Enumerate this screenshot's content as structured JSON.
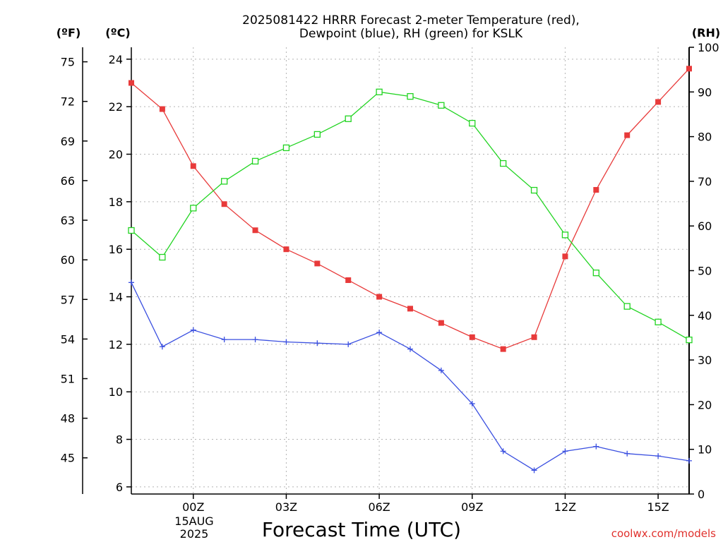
{
  "chart_data": {
    "type": "line",
    "title": [
      "2025081422 HRRR Forecast 2-meter Temperature (red),",
      "Dewpoint (blue), RH (green) for KSLK"
    ],
    "xlabel": "Forecast Time (UTC)",
    "x_ticks": [
      "00Z",
      "03Z",
      "06Z",
      "09Z",
      "12Z",
      "15Z"
    ],
    "x_tick_hours": [
      2,
      5,
      8,
      11,
      14,
      17
    ],
    "x_date_label": [
      "15AUG",
      "2025"
    ],
    "x_range_hours": [
      0,
      18
    ],
    "x": [
      "22Z",
      "23Z",
      "00Z",
      "01Z",
      "02Z",
      "03Z",
      "04Z",
      "05Z",
      "06Z",
      "07Z",
      "08Z",
      "09Z",
      "10Z",
      "11Z",
      "12Z",
      "13Z",
      "14Z",
      "15Z",
      "16Z"
    ],
    "y_left_f": {
      "label": "(ºF)",
      "ticks": [
        45,
        48,
        51,
        54,
        57,
        60,
        63,
        66,
        69,
        72,
        75
      ]
    },
    "y_left_c": {
      "label": "(ºC)",
      "ticks": [
        6,
        8,
        10,
        12,
        14,
        16,
        18,
        20,
        22,
        24
      ],
      "range": [
        5.7,
        24.5
      ]
    },
    "y_right": {
      "label": "(RH)",
      "ticks": [
        0,
        10,
        20,
        30,
        40,
        50,
        60,
        70,
        80,
        90,
        100
      ],
      "range": [
        0,
        100
      ]
    },
    "grid": true,
    "series": [
      {
        "name": "Temperature (red)",
        "axis": "c",
        "color": "#e83a3a",
        "marker": "filled-square",
        "values": [
          23.0,
          21.9,
          19.5,
          17.9,
          16.8,
          16.0,
          15.4,
          14.7,
          14.0,
          13.5,
          12.9,
          12.3,
          11.8,
          12.3,
          15.7,
          18.5,
          20.8,
          22.2,
          23.6
        ]
      },
      {
        "name": "Dewpoint (blue)",
        "axis": "c",
        "color": "#3a4fe0",
        "marker": "plus",
        "values": [
          14.6,
          11.9,
          12.6,
          12.2,
          12.2,
          12.1,
          12.05,
          12.0,
          12.5,
          11.8,
          10.9,
          9.5,
          7.5,
          6.7,
          7.5,
          7.7,
          7.4,
          7.3,
          7.1
        ]
      },
      {
        "name": "RH (green)",
        "axis": "rh",
        "color": "#22d422",
        "marker": "open-square",
        "values": [
          59,
          53,
          64,
          70,
          74.5,
          77.5,
          80.5,
          84,
          90,
          89,
          87,
          83,
          74,
          68,
          58,
          49.5,
          42,
          38.5,
          34.5
        ]
      }
    ]
  },
  "credit": "coolwx.com/models"
}
